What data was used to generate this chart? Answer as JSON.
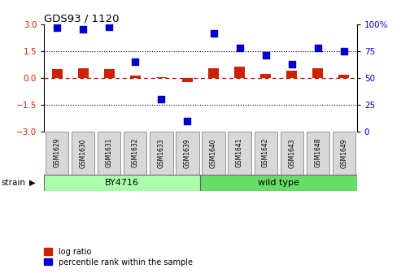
{
  "title": "GDS93 / 1120",
  "samples": [
    "GSM1629",
    "GSM1630",
    "GSM1631",
    "GSM1632",
    "GSM1633",
    "GSM1639",
    "GSM1640",
    "GSM1641",
    "GSM1642",
    "GSM1643",
    "GSM1648",
    "GSM1649"
  ],
  "log_ratio": [
    0.52,
    0.55,
    0.5,
    0.12,
    0.05,
    -0.22,
    0.55,
    0.65,
    0.25,
    0.42,
    0.55,
    0.18
  ],
  "percentile": [
    97,
    96,
    98,
    65,
    30,
    10,
    92,
    78,
    71,
    63,
    78,
    75
  ],
  "bar_color": "#cc2200",
  "dot_color": "#0000cc",
  "ylim_left": [
    -3,
    3
  ],
  "ylim_right": [
    0,
    100
  ],
  "yticks_left": [
    -3,
    -1.5,
    0,
    1.5,
    3
  ],
  "yticks_right": [
    0,
    25,
    50,
    75,
    100
  ],
  "ytick_labels_right": [
    "0",
    "25",
    "50",
    "75",
    "100%"
  ],
  "hline_zero_color": "#cc0000",
  "hline_dotted_color": "#000000",
  "strain_groups": [
    {
      "label": "BY4716",
      "start": 0,
      "end": 5,
      "color": "#aaffaa"
    },
    {
      "label": "wild type",
      "start": 6,
      "end": 11,
      "color": "#66dd66"
    }
  ],
  "strain_label": "strain",
  "legend_items": [
    {
      "label": "log ratio",
      "color": "#cc2200"
    },
    {
      "label": "percentile rank within the sample",
      "color": "#0000cc"
    }
  ],
  "background_color": "#ffffff",
  "tick_label_color_left": "#cc2200",
  "tick_label_color_right": "#0000cc",
  "bar_width": 0.4,
  "dot_size": 28
}
